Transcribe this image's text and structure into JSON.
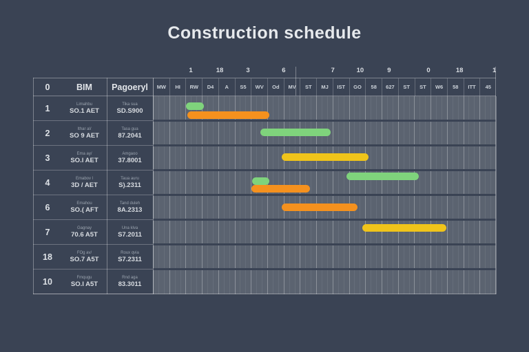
{
  "title": "Construction schedule",
  "colors": {
    "background": "#3a4354",
    "chart_background": "#5b6370",
    "grid_line": "#8a919c",
    "text": "#e2e5e9",
    "green": "#7fd37c",
    "orange": "#f5911e",
    "yellow": "#f0c41a"
  },
  "table": {
    "header": {
      "num": "0",
      "name": "BIM",
      "date": "Pagoeryl"
    },
    "rows": [
      {
        "num": "1",
        "name_label": "Limahbu",
        "name": "SO.1 AET",
        "date_label": "Tika sua",
        "date": "SD.S900"
      },
      {
        "num": "2",
        "name_label": "Ithar al/",
        "name": "SO 9 AET",
        "date_label": "Tasa gua",
        "date": "87.2041"
      },
      {
        "num": "3",
        "name_label": "Ema ay/",
        "name": "SO.l AET",
        "date_label": "Amgaoo",
        "date": "37.8001"
      },
      {
        "num": "4",
        "name_label": "Emabov l",
        "name": "3D / AET",
        "date_label": "Taua auru",
        "date": "S).2311"
      },
      {
        "num": "6",
        "name_label": "Emahou",
        "name": "SO.( AFT",
        "date_label": "Tand duleh",
        "date": "8A.2313"
      },
      {
        "num": "7",
        "name_label": "Gagnay",
        "name": "70.6 A5T",
        "date_label": "Una klva",
        "date": "S7.2011"
      },
      {
        "num": "18",
        "name_label": "FOg av/",
        "name": "SO.7 A5T",
        "date_label": "Roux qvia",
        "date": "S7.2311"
      },
      {
        "num": "10",
        "name_label": "Fmqugu",
        "name": "SO.l A5T",
        "date_label": "Rnd aga",
        "date": "83.3011"
      }
    ]
  },
  "timeline": {
    "days_total": 21,
    "day_labels": [
      "MW",
      "HI",
      "RW",
      "D4",
      "A",
      "S5",
      "WV",
      "Od",
      "MV",
      "ST",
      "MJ",
      "IST",
      "GO",
      "58",
      "627",
      "ST",
      "ST",
      "W6",
      "58",
      "ITT",
      "45"
    ],
    "week_numbers": [
      {
        "label": "1",
        "day": 2.32
      },
      {
        "label": "18",
        "day": 4.09
      },
      {
        "label": "3",
        "day": 5.82
      },
      {
        "label": "6",
        "day": 8.01
      },
      {
        "label": "7",
        "day": 11.01
      },
      {
        "label": "10",
        "day": 12.69
      },
      {
        "label": "9",
        "day": 14.46
      },
      {
        "label": "0",
        "day": 16.87
      },
      {
        "label": "18",
        "day": 18.77
      },
      {
        "label": "1",
        "day": 20.9
      }
    ]
  },
  "chart_data": {
    "type": "gantt",
    "title": "Construction schedule",
    "x_unit": "days",
    "x_range": [
      0,
      21
    ],
    "rows_total": 8,
    "bars": [
      {
        "row": 1,
        "color": "green",
        "start_day": 2.02,
        "end_day": 3.12,
        "dy": 9
      },
      {
        "row": 1,
        "color": "orange",
        "start_day": 2.11,
        "end_day": 7.13,
        "dy": 22
      },
      {
        "row": 2,
        "color": "green",
        "start_day": 6.58,
        "end_day": 10.88,
        "dy": 11
      },
      {
        "row": 3,
        "color": "yellow",
        "start_day": 7.89,
        "end_day": 13.2,
        "dy": 11
      },
      {
        "row": 4,
        "color": "green",
        "start_day": 11.85,
        "end_day": 16.28,
        "dy": 3
      },
      {
        "row": 4,
        "color": "green",
        "start_day": 6.07,
        "end_day": 7.13,
        "dy": 10
      },
      {
        "row": 4,
        "color": "orange",
        "start_day": 6.03,
        "end_day": 9.61,
        "dy": 21
      },
      {
        "row": 5,
        "color": "orange",
        "start_day": 7.89,
        "end_day": 12.52,
        "dy": 12
      },
      {
        "row": 6,
        "color": "yellow",
        "start_day": 12.82,
        "end_day": 17.97,
        "dy": 6
      }
    ]
  }
}
